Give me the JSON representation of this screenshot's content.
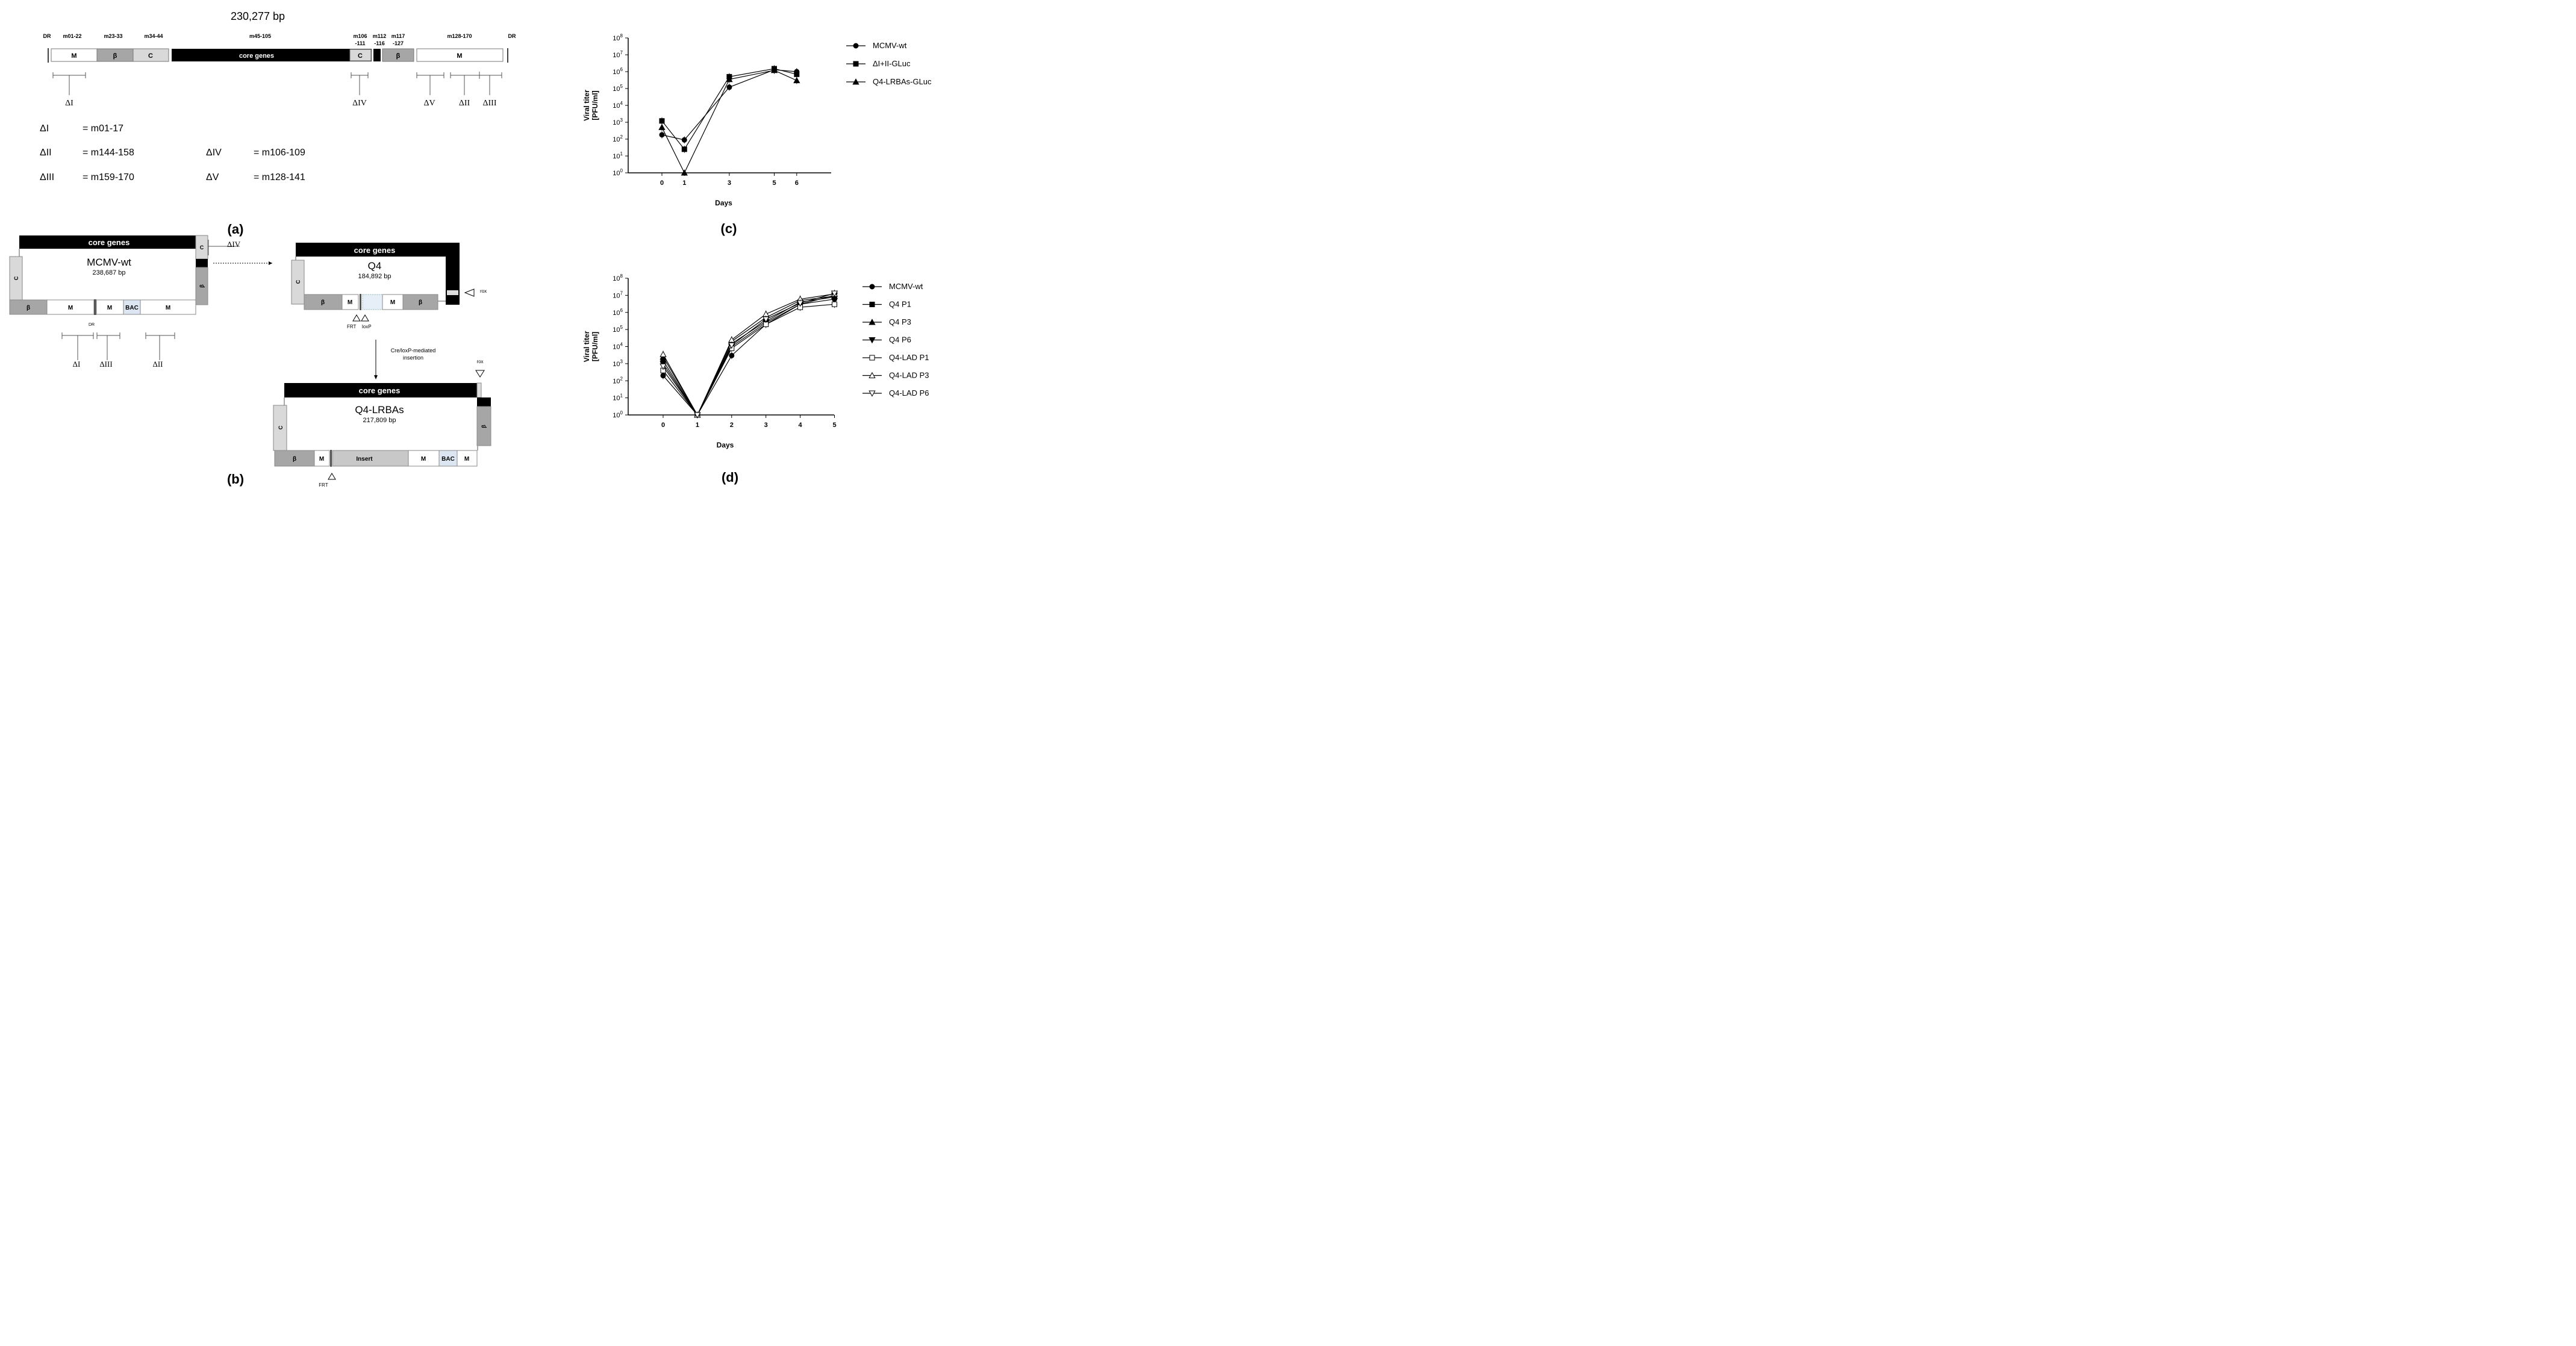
{
  "panel_a": {
    "label": "(a)",
    "genome_size": "230,277 bp",
    "dr_left": "DR",
    "dr_right": "DR",
    "regions": {
      "r1": {
        "name": "m01-22",
        "box": "M"
      },
      "r2": {
        "name": "m23-33",
        "box": "β"
      },
      "r3": {
        "name": "m34-44",
        "box": "C"
      },
      "r4": {
        "name": "m45-105",
        "box": "core genes"
      },
      "r5": {
        "name_1": "m106",
        "name_2": "-111",
        "box": "C"
      },
      "r6": {
        "name_1": "m112",
        "name_2": "-116"
      },
      "r7": {
        "name_1": "m117",
        "name_2": "-127",
        "box": "β"
      },
      "r8": {
        "name": "m128-170",
        "box": "M"
      }
    },
    "deletion_marks": {
      "d1": "ΔI",
      "d4": "ΔIV",
      "d5": "ΔV",
      "d2": "ΔII",
      "d3": "ΔIII"
    },
    "legend": {
      "d1": {
        "name": "ΔI",
        "value": "= m01-17"
      },
      "d2": {
        "name": "ΔII",
        "value": "= m144-158"
      },
      "d3": {
        "name": "ΔIII",
        "value": "= m159-170"
      },
      "d4": {
        "name": "ΔIV",
        "value": "= m106-109"
      },
      "d5": {
        "name": "ΔV",
        "value": "= m128-141"
      }
    }
  },
  "panel_b": {
    "label": "(b)",
    "wt": {
      "core": "core genes",
      "name": "MCMV-wt",
      "size": "238,687 bp",
      "left_box": "C",
      "right_box": "β",
      "bottom": [
        "β",
        "M",
        "M",
        "BAC",
        "M"
      ],
      "dr": "DR",
      "marks": {
        "d4": "ΔIV",
        "d1": "ΔI",
        "d3": "ΔIII",
        "d2": "ΔII"
      }
    },
    "q4": {
      "core": "core genes",
      "name": "Q4",
      "size": "184,892 bp",
      "left_box": "C",
      "bottom": [
        "β",
        "M",
        "M",
        "β"
      ],
      "frt": "FRT",
      "loxp": "loxP",
      "rox": "rox"
    },
    "arrow_label_1": "Cre/loxP-mediated",
    "arrow_label_2": "insertion",
    "lrbas": {
      "core": "core genes",
      "name": "Q4-LRBAs",
      "size": "217,809 bp",
      "left_box": "C",
      "right_box": "β",
      "bottom": [
        "β",
        "M",
        "Insert",
        "M",
        "BAC",
        "M"
      ],
      "frt": "FRT",
      "rox": "rox"
    }
  },
  "panel_c": {
    "label": "(c)",
    "chart_data": {
      "type": "line",
      "xlabel": "Days",
      "ylabel_1": "Viral titer",
      "ylabel_2": "[PFU/ml]",
      "yscale": "log",
      "ylim": [
        1,
        100000000
      ],
      "x_ticks": [
        "0",
        "1",
        "3",
        "5",
        "6"
      ],
      "y_tick_exponents": [
        "0",
        "1",
        "2",
        "3",
        "4",
        "5",
        "6",
        "7",
        "8"
      ],
      "legend_position": "right",
      "x": [
        0,
        1,
        3,
        5,
        6
      ],
      "series": [
        {
          "name": "MCMV-wt",
          "marker": "circle",
          "values": [
            180,
            90,
            120000,
            1300000,
            1000000
          ]
        },
        {
          "name": "ΔI+II-GLuc",
          "marker": "square",
          "values": [
            1200,
            25,
            500000,
            1500000,
            700000
          ]
        },
        {
          "name": "Q4-LRBAs-GLuc",
          "marker": "triangle",
          "values": [
            500,
            1,
            350000,
            1200000,
            300000
          ]
        }
      ]
    }
  },
  "panel_d": {
    "label": "(d)",
    "chart_data": {
      "type": "line",
      "xlabel": "Days",
      "ylabel_1": "Viral titer",
      "ylabel_2": "[PFU/ml]",
      "yscale": "log",
      "ylim": [
        1,
        100000000
      ],
      "x_ticks": [
        "0",
        "1",
        "2",
        "3",
        "4",
        "5"
      ],
      "y_tick_exponents": [
        "0",
        "1",
        "2",
        "3",
        "4",
        "5",
        "6",
        "7",
        "8"
      ],
      "legend_position": "right",
      "x": [
        0,
        1,
        2,
        3,
        4,
        5
      ],
      "series": [
        {
          "name": "MCMV-wt",
          "marker": "circle",
          "values": [
            200,
            1,
            3000,
            200000,
            3000000,
            6000000
          ]
        },
        {
          "name": "Q4 P1",
          "marker": "square",
          "values": [
            1500,
            1,
            15000,
            300000,
            4000000,
            8000000
          ]
        },
        {
          "name": "Q4 P3",
          "marker": "triangle",
          "values": [
            2500,
            1,
            20000,
            500000,
            5000000,
            9000000
          ]
        },
        {
          "name": "Q4 P6",
          "marker": "triangle-down",
          "values": [
            1000,
            1,
            10000,
            250000,
            3000000,
            10000000
          ]
        },
        {
          "name": "Q4-LAD P1",
          "marker": "open-square",
          "values": [
            400,
            1,
            8000,
            200000,
            2000000,
            3000000
          ]
        },
        {
          "name": "Q4-LAD P3",
          "marker": "open-triangle",
          "values": [
            3500,
            1,
            25000,
            800000,
            6000000,
            12000000
          ]
        },
        {
          "name": "Q4-LAD P6",
          "marker": "open-triangle-down",
          "values": [
            700,
            1,
            12000,
            400000,
            3500000,
            13000000
          ]
        }
      ]
    }
  }
}
